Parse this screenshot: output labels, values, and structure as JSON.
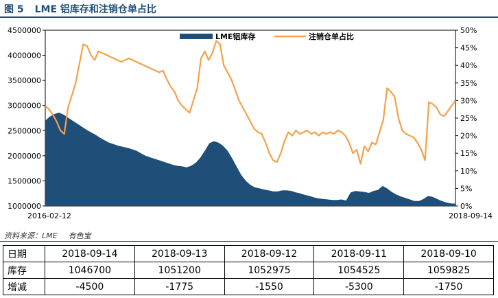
{
  "figure": {
    "number": "图 5",
    "title": "LME 铝库存和注销仓单占比"
  },
  "source": {
    "text": "资料来源：LME",
    "org": "有色宝"
  },
  "colors": {
    "bar": "#1f4e79",
    "line": "#f5a048",
    "heading": "#1f4e79"
  },
  "chart_data": {
    "type": "area",
    "title": "",
    "x_start": "2016-02-12",
    "x_end": "2018-09-14",
    "y_left": {
      "min": 1000000,
      "max": 4500000,
      "step": 500000,
      "ticks": [
        "1000000",
        "1500000",
        "2000000",
        "2500000",
        "3000000",
        "3500000",
        "4000000",
        "4500000"
      ]
    },
    "y_right": {
      "min": 0,
      "max": 50,
      "step": 5,
      "ticks": [
        "0%",
        "5%",
        "10%",
        "15%",
        "20%",
        "25%",
        "30%",
        "35%",
        "40%",
        "45%",
        "50%"
      ]
    },
    "x_ticks": [
      "2016-02-12",
      "2018-09-14"
    ],
    "legend": {
      "position": "top",
      "items": [
        "LME铝库存",
        "注销仓单占比"
      ]
    },
    "series": [
      {
        "name": "LME铝库存",
        "type": "area",
        "axis": "left",
        "values": [
          2700000,
          2780000,
          2830000,
          2860000,
          2820000,
          2760000,
          2700000,
          2640000,
          2580000,
          2520000,
          2470000,
          2420000,
          2360000,
          2310000,
          2260000,
          2230000,
          2200000,
          2180000,
          2160000,
          2130000,
          2100000,
          2050000,
          2000000,
          1970000,
          1940000,
          1910000,
          1880000,
          1850000,
          1820000,
          1800000,
          1790000,
          1770000,
          1800000,
          1860000,
          1960000,
          2100000,
          2250000,
          2290000,
          2260000,
          2200000,
          2100000,
          1950000,
          1780000,
          1620000,
          1500000,
          1420000,
          1370000,
          1350000,
          1330000,
          1310000,
          1290000,
          1290000,
          1310000,
          1310000,
          1300000,
          1270000,
          1250000,
          1220000,
          1200000,
          1170000,
          1150000,
          1140000,
          1130000,
          1120000,
          1120000,
          1130000,
          1110000,
          1270000,
          1300000,
          1290000,
          1280000,
          1260000,
          1300000,
          1320000,
          1400000,
          1350000,
          1280000,
          1230000,
          1190000,
          1160000,
          1130000,
          1100000,
          1100000,
          1140000,
          1200000,
          1180000,
          1140000,
          1100000,
          1070000,
          1050000,
          1046700
        ]
      },
      {
        "name": "注销仓单占比",
        "type": "line",
        "axis": "right",
        "values": [
          28.5,
          27.5,
          26,
          24,
          21.5,
          20.5,
          28,
          31.5,
          35,
          40.5,
          46,
          45.5,
          43,
          41.5,
          44,
          43.5,
          43,
          42.5,
          42,
          41.5,
          41,
          41.5,
          42,
          41.5,
          41,
          40.5,
          40,
          39.5,
          39,
          38.5,
          38,
          38.5,
          36,
          34,
          32.5,
          30,
          28.5,
          27.5,
          26.5,
          30,
          33.5,
          42,
          44,
          41.5,
          43.5,
          47,
          46,
          40,
          38,
          36,
          33,
          30,
          28,
          26,
          24,
          22,
          21,
          20.5,
          18,
          15,
          13,
          12.5,
          15,
          18.5,
          21,
          20,
          21.5,
          20.5,
          21,
          21.5,
          20.5,
          21,
          20,
          21,
          20.5,
          21,
          20.5,
          21.5,
          21,
          20,
          18,
          15,
          16,
          12,
          17,
          15.5,
          18,
          17.5,
          21,
          24.5,
          33.5,
          32.5,
          31,
          25,
          21.5,
          20.5,
          20,
          19.5,
          18,
          16,
          13,
          29.5,
          29,
          28,
          26,
          25.5,
          27,
          28.5,
          30
        ]
      }
    ]
  },
  "table": {
    "row_headers": [
      "日期",
      "库存",
      "增减"
    ],
    "dates": [
      "2018-09-14",
      "2018-09-13",
      "2018-09-12",
      "2018-09-11",
      "2018-09-10"
    ],
    "stock": [
      "1046700",
      "1051200",
      "1052975",
      "1054525",
      "1059825"
    ],
    "change": [
      "-4500",
      "-1775",
      "-1550",
      "-5300",
      "-1750"
    ]
  }
}
